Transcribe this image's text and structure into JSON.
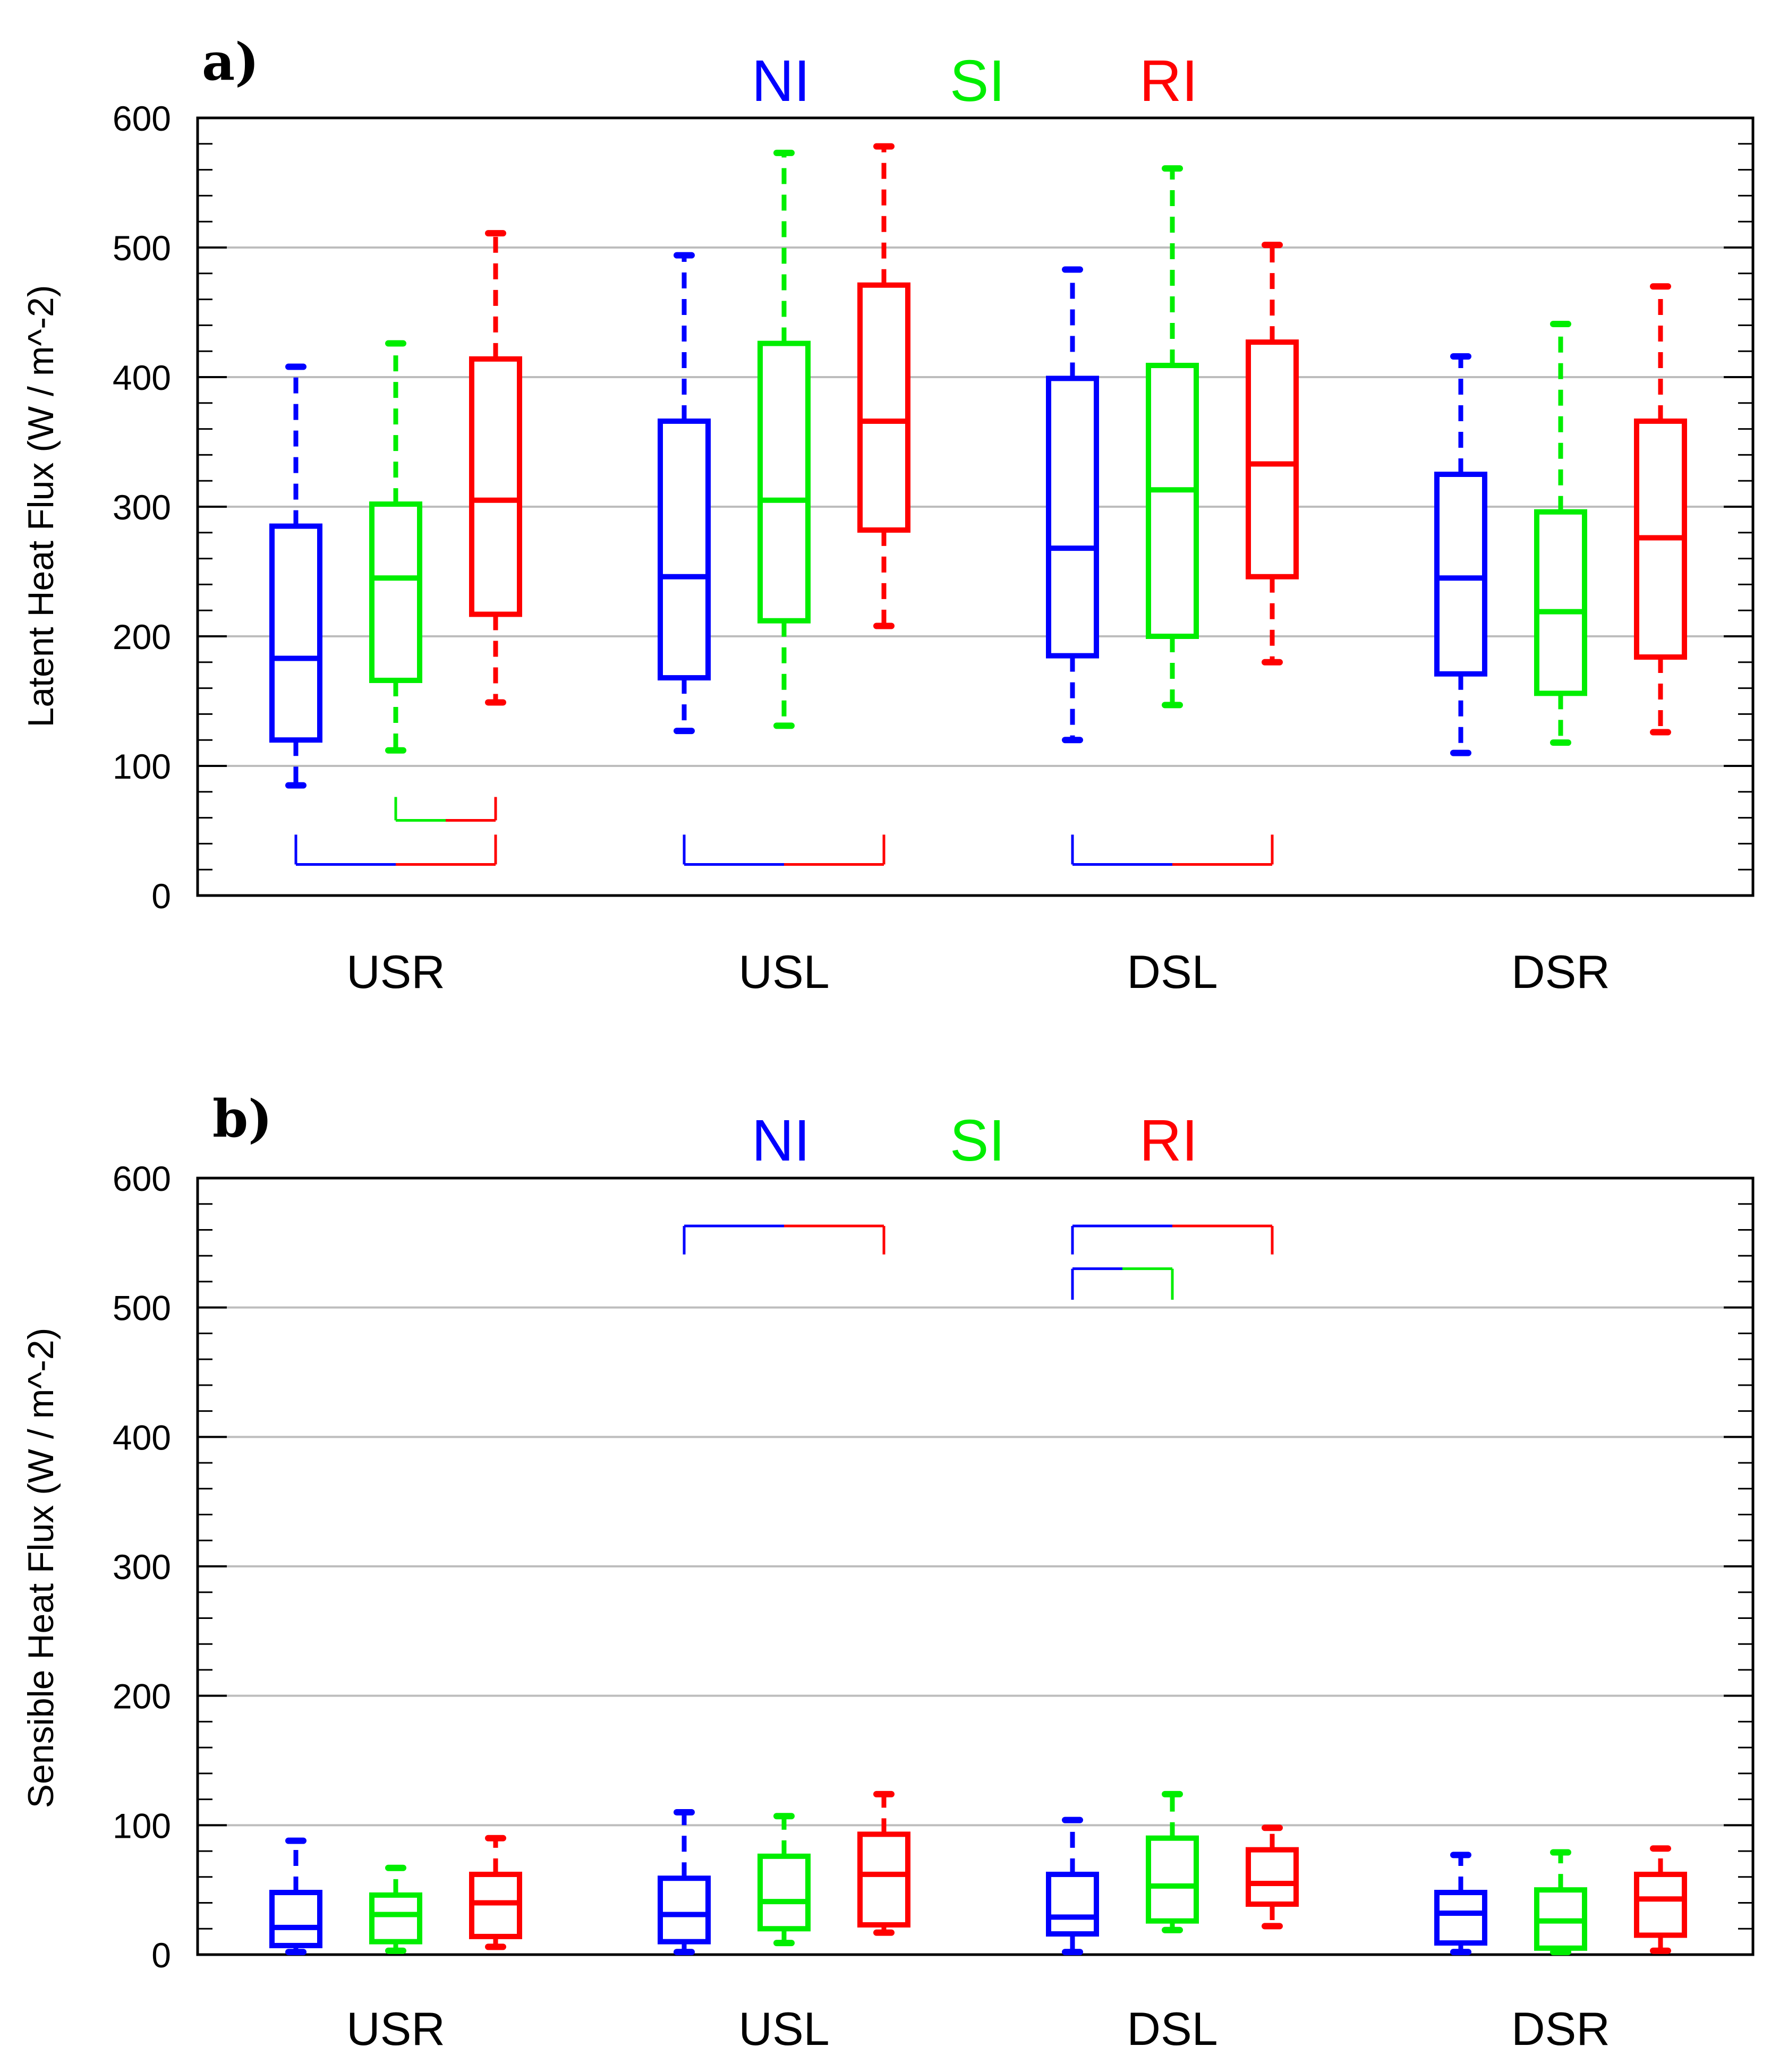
{
  "legend": [
    {
      "name": "NI",
      "color": "#0000ff"
    },
    {
      "name": "SI",
      "color": "#00ee00"
    },
    {
      "name": "RI",
      "color": "#ff0000"
    }
  ],
  "chart_data": [
    {
      "panel": "a)",
      "type": "boxplot",
      "ylabel": "Latent Heat Flux (W / m^-2)",
      "ylim": [
        0,
        600
      ],
      "yticks": [
        0,
        100,
        200,
        300,
        400,
        500,
        600
      ],
      "categories": [
        "USR",
        "USL",
        "DSL",
        "DSR"
      ],
      "series": [
        {
          "name": "NI",
          "color": "#0000ff",
          "boxes": [
            {
              "min": 85,
              "q1": 120,
              "median": 183,
              "q3": 285,
              "max": 408
            },
            {
              "min": 127,
              "q1": 168,
              "median": 246,
              "q3": 366,
              "max": 494
            },
            {
              "min": 120,
              "q1": 185,
              "median": 268,
              "q3": 399,
              "max": 483
            },
            {
              "min": 110,
              "q1": 171,
              "median": 245,
              "q3": 325,
              "max": 416
            }
          ]
        },
        {
          "name": "SI",
          "color": "#00ee00",
          "boxes": [
            {
              "min": 112,
              "q1": 166,
              "median": 245,
              "q3": 302,
              "max": 426
            },
            {
              "min": 131,
              "q1": 212,
              "median": 305,
              "q3": 426,
              "max": 573
            },
            {
              "min": 147,
              "q1": 200,
              "median": 313,
              "q3": 409,
              "max": 561
            },
            {
              "min": 118,
              "q1": 156,
              "median": 219,
              "q3": 296,
              "max": 441
            }
          ]
        },
        {
          "name": "RI",
          "color": "#ff0000",
          "boxes": [
            {
              "min": 149,
              "q1": 217,
              "median": 305,
              "q3": 414,
              "max": 511
            },
            {
              "min": 208,
              "q1": 282,
              "median": 366,
              "q3": 471,
              "max": 578
            },
            {
              "min": 180,
              "q1": 246,
              "median": 333,
              "q3": 427,
              "max": 502
            },
            {
              "min": 126,
              "q1": 184,
              "median": 276,
              "q3": 366,
              "max": 470
            }
          ]
        }
      ],
      "brackets": [
        {
          "category": "USR",
          "from": "SI",
          "to": "RI",
          "top": 76,
          "bottom": 58
        },
        {
          "category": "USR",
          "from": "NI",
          "to": "RI",
          "top": 47,
          "bottom": 24
        },
        {
          "category": "USL",
          "from": "NI",
          "to": "RI",
          "top": 47,
          "bottom": 24
        },
        {
          "category": "DSL",
          "from": "NI",
          "to": "RI",
          "top": 47,
          "bottom": 24
        }
      ]
    },
    {
      "panel": "b)",
      "type": "boxplot",
      "ylabel": "Sensible Heat Flux (W / m^-2)",
      "ylim": [
        0,
        600
      ],
      "yticks": [
        0,
        100,
        200,
        300,
        400,
        500,
        600
      ],
      "categories": [
        "USR",
        "USL",
        "DSL",
        "DSR"
      ],
      "series": [
        {
          "name": "NI",
          "color": "#0000ff",
          "boxes": [
            {
              "min": 2,
              "q1": 7,
              "median": 21,
              "q3": 48,
              "max": 88
            },
            {
              "min": 2,
              "q1": 10,
              "median": 31,
              "q3": 59,
              "max": 110
            },
            {
              "min": 2,
              "q1": 16,
              "median": 29,
              "q3": 62,
              "max": 104
            },
            {
              "min": 2,
              "q1": 9,
              "median": 32,
              "q3": 48,
              "max": 77
            }
          ]
        },
        {
          "name": "SI",
          "color": "#00ee00",
          "boxes": [
            {
              "min": 3,
              "q1": 10,
              "median": 31,
              "q3": 46,
              "max": 67
            },
            {
              "min": 9,
              "q1": 20,
              "median": 41,
              "q3": 76,
              "max": 107
            },
            {
              "min": 19,
              "q1": 26,
              "median": 53,
              "q3": 90,
              "max": 124
            },
            {
              "min": 2,
              "q1": 5,
              "median": 26,
              "q3": 50,
              "max": 79
            }
          ]
        },
        {
          "name": "RI",
          "color": "#ff0000",
          "boxes": [
            {
              "min": 6,
              "q1": 14,
              "median": 40,
              "q3": 62,
              "max": 90
            },
            {
              "min": 17,
              "q1": 23,
              "median": 62,
              "q3": 93,
              "max": 124
            },
            {
              "min": 22,
              "q1": 39,
              "median": 55,
              "q3": 81,
              "max": 98
            },
            {
              "min": 3,
              "q1": 15,
              "median": 43,
              "q3": 62,
              "max": 82
            }
          ]
        }
      ],
      "brackets": [
        {
          "category": "USL",
          "from": "NI",
          "to": "RI",
          "top": 563,
          "bottom": 541
        },
        {
          "category": "DSL",
          "from": "NI",
          "to": "RI",
          "top": 563,
          "bottom": 541
        },
        {
          "category": "DSL",
          "from": "NI",
          "to": "SI",
          "top": 530,
          "bottom": 506
        }
      ]
    }
  ]
}
